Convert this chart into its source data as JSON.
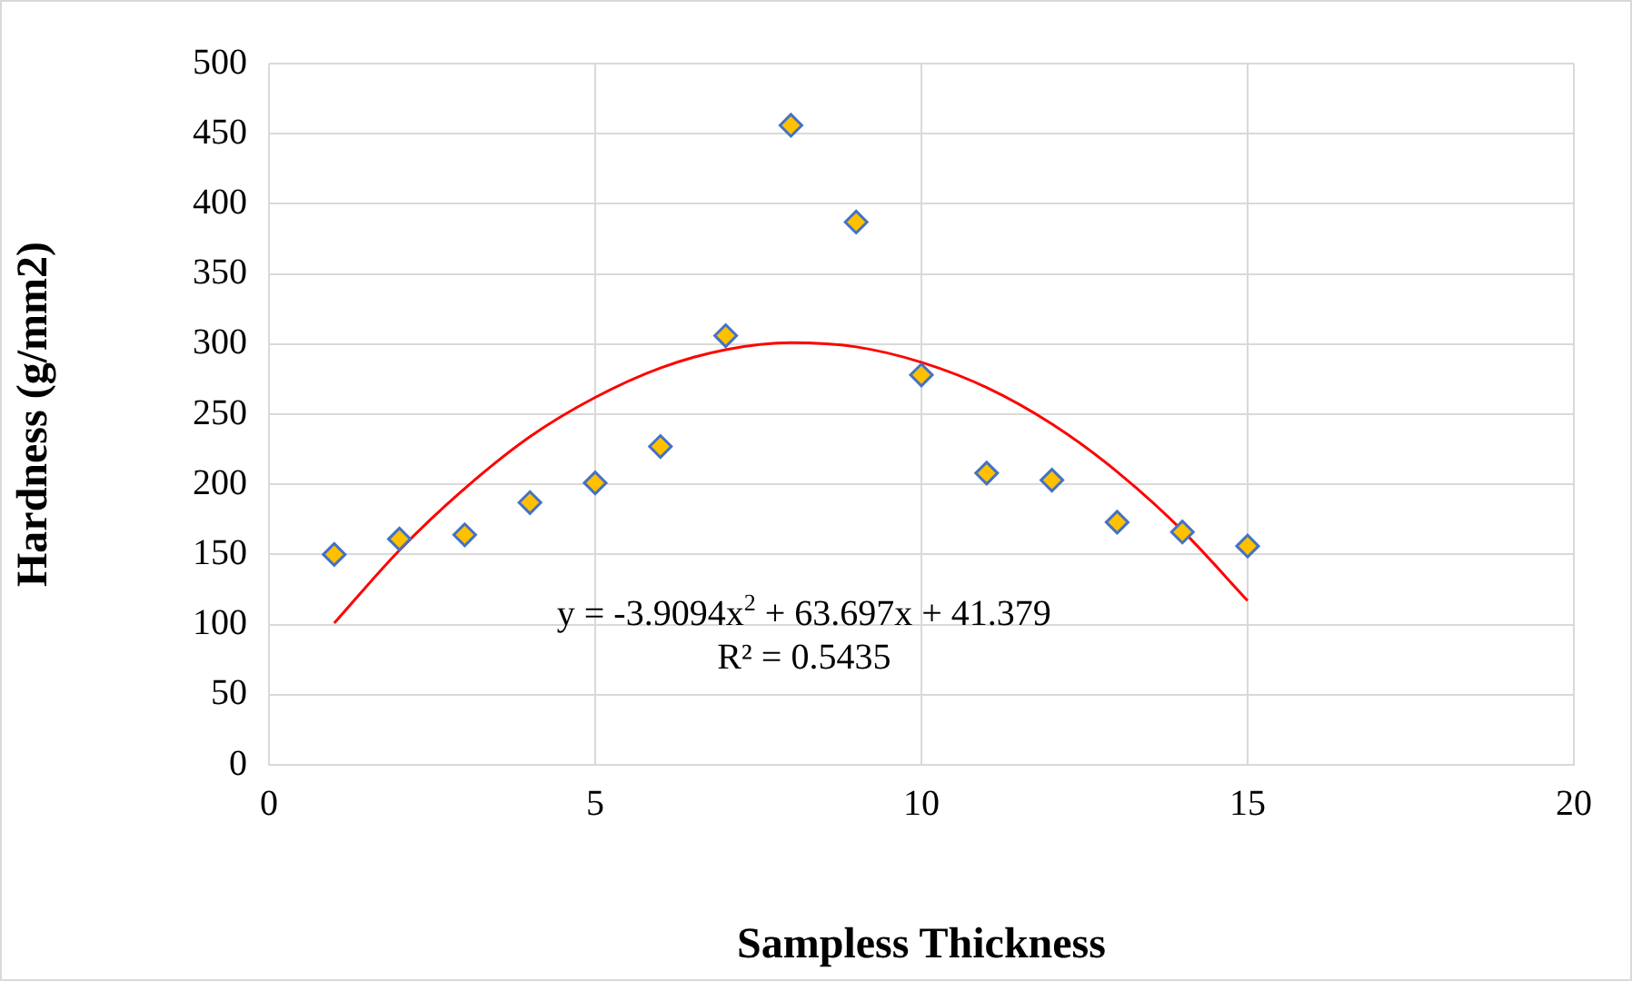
{
  "chart_data": {
    "type": "scatter",
    "xlabel": "Sampless Thickness",
    "ylabel": "Hardness (g/mm2)",
    "xlim": [
      0,
      20
    ],
    "xticks": [
      0,
      5,
      10,
      15,
      20
    ],
    "ylim": [
      0,
      500
    ],
    "yticks": [
      0,
      50,
      100,
      150,
      200,
      250,
      300,
      350,
      400,
      450,
      500
    ],
    "grid": true,
    "legend": false,
    "marker": "diamond",
    "series": [
      {
        "type": "scatter",
        "color": "#ffc000",
        "x": [
          1,
          2,
          3,
          4,
          5,
          6,
          7,
          8,
          9,
          10,
          11,
          12,
          13,
          14,
          15
        ],
        "values": [
          150,
          161,
          164,
          187,
          201,
          227,
          306,
          456,
          387,
          278,
          208,
          203,
          173,
          166,
          156
        ]
      },
      {
        "type": "line",
        "color": "#ff0000",
        "marker": "none",
        "x": [
          1,
          2,
          3,
          4,
          5,
          6,
          7,
          8,
          9,
          10,
          11,
          12,
          13,
          14,
          15
        ],
        "values": [
          101,
          153,
          197,
          234,
          262,
          283,
          296,
          301,
          298,
          287,
          269,
          243,
          209,
          167,
          117
        ]
      }
    ],
    "annotations": [
      "y = -3.9094x$^{2}$ + 63.697x + 41.379",
      "R² = 0.5435"
    ]
  }
}
